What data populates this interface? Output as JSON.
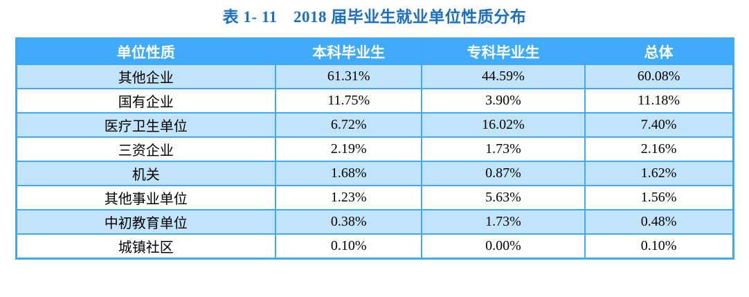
{
  "page": {
    "caption": "表 1- 11　2018 届毕业生就业单位性质分布"
  },
  "colors": {
    "caption_text": "#1B6FC2",
    "header_bg": "#40ABFA",
    "row_alt_bg": "#C2E4FB",
    "border": "#3FA9F7",
    "header_text": "#FFFFFF",
    "cell_text": "#000000"
  },
  "table": {
    "headers": [
      "单位性质",
      "本科毕业生",
      "专科毕业生",
      "总体"
    ],
    "rows": [
      [
        "其他企业",
        "61.31%",
        "44.59%",
        "60.08%"
      ],
      [
        "国有企业",
        "11.75%",
        "3.90%",
        "11.18%"
      ],
      [
        "医疗卫生单位",
        "6.72%",
        "16.02%",
        "7.40%"
      ],
      [
        "三资企业",
        "2.19%",
        "1.73%",
        "2.16%"
      ],
      [
        "机关",
        "1.68%",
        "0.87%",
        "1.62%"
      ],
      [
        "其他事业单位",
        "1.23%",
        "5.63%",
        "1.56%"
      ],
      [
        "中初教育单位",
        "0.38%",
        "1.73%",
        "0.48%"
      ],
      [
        "城镇社区",
        "0.10%",
        "0.00%",
        "0.10%"
      ]
    ]
  },
  "chart_data": {
    "type": "table",
    "title": "表 1- 11　2018 届毕业生就业单位性质分布",
    "categories": [
      "其他企业",
      "国有企业",
      "医疗卫生单位",
      "三资企业",
      "机关",
      "其他事业单位",
      "中初教育单位",
      "城镇社区"
    ],
    "series": [
      {
        "name": "本科毕业生",
        "values": [
          61.31,
          11.75,
          6.72,
          2.19,
          1.68,
          1.23,
          0.38,
          0.1
        ]
      },
      {
        "name": "专科毕业生",
        "values": [
          44.59,
          3.9,
          16.02,
          1.73,
          0.87,
          5.63,
          1.73,
          0.0
        ]
      },
      {
        "name": "总体",
        "values": [
          60.08,
          11.18,
          7.4,
          2.16,
          1.62,
          1.56,
          0.48,
          0.1
        ]
      }
    ]
  }
}
